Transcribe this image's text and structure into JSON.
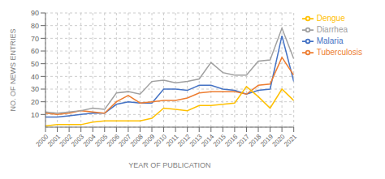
{
  "chart_data": {
    "type": "line",
    "xlabel": "YEAR OF PUBLICATION",
    "ylabel": "NO. OF NEWS ENTRIES",
    "x": [
      2000,
      2001,
      2002,
      2003,
      2004,
      2005,
      2006,
      2007,
      2008,
      2009,
      2010,
      2011,
      2012,
      2013,
      2014,
      2015,
      2016,
      2017,
      2018,
      2019,
      2020,
      2021
    ],
    "series": [
      {
        "name": "Malaria",
        "color": "#4472c4",
        "values": [
          8,
          8,
          9,
          10,
          11,
          11,
          18,
          20,
          19,
          19,
          30,
          30,
          29,
          33,
          33,
          30,
          29,
          26,
          29,
          30,
          72,
          36
        ]
      },
      {
        "name": "Tuberculosis",
        "color": "#ed7d31",
        "values": [
          11,
          10,
          11,
          13,
          12,
          11,
          20,
          25,
          19,
          20,
          21,
          21,
          23,
          27,
          28,
          28,
          28,
          26,
          33,
          34,
          55,
          41
        ]
      },
      {
        "name": "Diarrhea",
        "color": "#a0a0a0",
        "values": [
          12,
          11,
          12,
          13,
          15,
          14,
          27,
          28,
          26,
          36,
          37,
          35,
          36,
          38,
          51,
          43,
          41,
          41,
          52,
          53,
          78,
          54
        ]
      },
      {
        "name": "Dengue",
        "color": "#ffc000",
        "values": [
          1,
          2,
          2,
          2,
          4,
          5,
          5,
          5,
          5,
          7,
          15,
          14,
          13,
          17,
          17,
          18,
          19,
          32,
          24,
          15,
          30,
          21
        ]
      }
    ],
    "xlim": [
      2000,
      2021
    ],
    "xticks": [
      2000,
      2001,
      2002,
      2003,
      2004,
      2005,
      2006,
      2007,
      2008,
      2009,
      2010,
      2011,
      2012,
      2013,
      2014,
      2015,
      2016,
      2017,
      2018,
      2019,
      2020,
      2021
    ],
    "ylim": [
      0,
      90
    ],
    "yticks": [
      10,
      20,
      30,
      40,
      50,
      60,
      70,
      80,
      90
    ],
    "grid": true,
    "legend": "right"
  }
}
